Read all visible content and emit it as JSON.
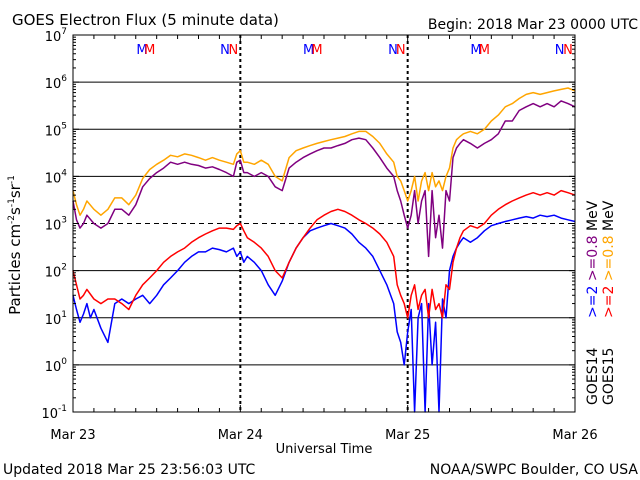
{
  "header": {
    "title": "GOES Electron Flux (5 minute data)",
    "begin": "Begin: 2018 Mar 23 0000 UTC"
  },
  "footer": {
    "updated": "Updated 2018 Mar 25 23:56:03 UTC",
    "credit": "NOAA/SWPC Boulder, CO USA"
  },
  "chart_data": {
    "type": "line",
    "title": "GOES Electron Flux (5 minute data)",
    "xlabel": "Universal Time",
    "ylabel": "Particles cm-2s-1sr-1",
    "y_scale": "log",
    "ylim": [
      0.1,
      10000000
    ],
    "xlim": [
      0,
      72
    ],
    "x_unit": "hours since 2018 Mar 23 0000 UTC",
    "x_ticks": [
      {
        "x": 0,
        "label": "Mar 23"
      },
      {
        "x": 24,
        "label": "Mar 24"
      },
      {
        "x": 48,
        "label": "Mar 25"
      },
      {
        "x": 72,
        "label": "Mar 26"
      }
    ],
    "y_ticks": [
      {
        "exp": -1,
        "base": "10",
        "sup": "-1"
      },
      {
        "exp": 0,
        "base": "10",
        "sup": "0"
      },
      {
        "exp": 1,
        "base": "10",
        "sup": "1"
      },
      {
        "exp": 2,
        "base": "10",
        "sup": "2"
      },
      {
        "exp": 3,
        "base": "10",
        "sup": "3"
      },
      {
        "exp": 4,
        "base": "10",
        "sup": "4"
      },
      {
        "exp": 5,
        "base": "10",
        "sup": "5"
      },
      {
        "exp": 6,
        "base": "10",
        "sup": "6"
      },
      {
        "exp": 7,
        "base": "10",
        "sup": "7"
      }
    ],
    "grid": "horizontal lines at each decade",
    "threshold_line": {
      "y": 1000,
      "style": "dashed"
    },
    "markers": [
      {
        "x": 9.9,
        "label": "M",
        "color": "#0000ff"
      },
      {
        "x": 11.0,
        "label": "M",
        "color": "#ff0000"
      },
      {
        "x": 21.8,
        "label": "N",
        "color": "#0000ff"
      },
      {
        "x": 23.0,
        "label": "N",
        "color": "#ff0000"
      },
      {
        "x": 33.8,
        "label": "M",
        "color": "#0000ff"
      },
      {
        "x": 35.0,
        "label": "M",
        "color": "#ff0000"
      },
      {
        "x": 45.9,
        "label": "N",
        "color": "#0000ff"
      },
      {
        "x": 47.0,
        "label": "N",
        "color": "#ff0000"
      },
      {
        "x": 57.8,
        "label": "M",
        "color": "#0000ff"
      },
      {
        "x": 59.0,
        "label": "M",
        "color": "#ff0000"
      },
      {
        "x": 69.8,
        "label": "N",
        "color": "#0000ff"
      },
      {
        "x": 71.0,
        "label": "N",
        "color": "#ff0000"
      }
    ],
    "legend": {
      "placement": "right, rotated",
      "groups": [
        {
          "items": [
            {
              "text": ">=2",
              "color": "#0000ff"
            },
            {
              "text": ">=0.8",
              "color": "#800080"
            },
            {
              "text": "MeV",
              "color": "#000000"
            }
          ]
        },
        {
          "items": [
            {
              "text": ">=2",
              "color": "#ff0000"
            },
            {
              "text": ">=0.8",
              "color": "#ffa500"
            },
            {
              "text": "MeV",
              "color": "#000000"
            }
          ]
        },
        {
          "items": [
            {
              "text": "GOES14",
              "color": "#000000"
            }
          ]
        },
        {
          "items": [
            {
              "text": "GOES15",
              "color": "#000000"
            }
          ]
        }
      ]
    },
    "series": [
      {
        "name": "GOES14 >=0.8 MeV",
        "color": "#800080",
        "x": [
          0,
          0.5,
          1,
          1.5,
          2,
          3,
          4,
          5,
          6,
          7,
          8,
          9,
          10,
          11,
          12,
          13,
          14,
          15,
          16,
          17,
          18,
          19,
          20,
          21,
          22,
          23,
          23.5,
          24,
          24.5,
          25,
          26,
          27,
          28,
          29,
          30,
          31,
          32,
          33,
          34,
          35,
          36,
          37,
          38,
          39,
          40,
          41,
          42,
          43,
          44,
          45,
          46,
          46.5,
          47,
          47.5,
          48,
          48.5,
          49,
          49.5,
          50,
          50.5,
          51,
          51.5,
          52,
          52.5,
          53,
          53.5,
          54,
          54.5,
          55,
          55.5,
          56,
          57,
          58,
          59,
          60,
          61,
          62,
          63,
          64,
          65,
          66,
          67,
          68,
          69,
          70,
          71,
          72
        ],
        "y": [
          3000,
          1200,
          800,
          1000,
          1500,
          1000,
          800,
          1000,
          2000,
          2000,
          1500,
          2500,
          6000,
          9000,
          12000,
          15000,
          20000,
          18000,
          20000,
          18000,
          17000,
          15000,
          16000,
          14000,
          12000,
          10000,
          20000,
          22000,
          12000,
          12000,
          10000,
          12000,
          10000,
          6000,
          5000,
          15000,
          20000,
          25000,
          30000,
          35000,
          40000,
          40000,
          45000,
          50000,
          60000,
          65000,
          60000,
          40000,
          25000,
          15000,
          10000,
          5000,
          3000,
          1500,
          800,
          1500,
          5000,
          1000,
          3000,
          5000,
          200,
          5000,
          500,
          1500,
          300,
          5000,
          3000,
          25000,
          40000,
          50000,
          60000,
          50000,
          40000,
          50000,
          60000,
          80000,
          150000,
          150000,
          250000,
          300000,
          350000,
          300000,
          350000,
          300000,
          400000,
          350000,
          300000
        ]
      },
      {
        "name": "GOES15 >=0.8 MeV",
        "color": "#ffa500",
        "x": [
          0,
          0.5,
          1,
          1.5,
          2,
          3,
          4,
          5,
          6,
          7,
          8,
          9,
          10,
          11,
          12,
          13,
          14,
          15,
          16,
          17,
          18,
          19,
          20,
          21,
          22,
          23,
          23.5,
          24,
          24.5,
          25,
          26,
          27,
          28,
          29,
          30,
          31,
          32,
          33,
          34,
          35,
          36,
          37,
          38,
          39,
          40,
          41,
          42,
          43,
          44,
          45,
          46,
          46.5,
          47,
          47.5,
          48,
          48.5,
          49,
          49.5,
          50,
          50.5,
          51,
          51.5,
          52,
          52.5,
          53,
          53.5,
          54,
          54.5,
          55,
          55.5,
          56,
          57,
          58,
          59,
          60,
          61,
          62,
          63,
          64,
          65,
          66,
          67,
          68,
          69,
          70,
          71,
          72
        ],
        "y": [
          5000,
          2500,
          1500,
          2000,
          3000,
          2000,
          1500,
          2000,
          3500,
          3500,
          2500,
          4000,
          9000,
          14000,
          18000,
          22000,
          28000,
          26000,
          30000,
          28000,
          25000,
          22000,
          25000,
          22000,
          20000,
          18000,
          30000,
          35000,
          20000,
          20000,
          18000,
          22000,
          18000,
          10000,
          8000,
          25000,
          35000,
          40000,
          45000,
          50000,
          55000,
          60000,
          65000,
          70000,
          80000,
          90000,
          90000,
          70000,
          50000,
          30000,
          20000,
          10000,
          8000,
          5000,
          3000,
          5000,
          10000,
          3000,
          8000,
          12000,
          5000,
          12000,
          6000,
          8000,
          5000,
          10000,
          15000,
          40000,
          60000,
          70000,
          80000,
          90000,
          80000,
          100000,
          150000,
          200000,
          300000,
          350000,
          450000,
          550000,
          600000,
          550000,
          600000,
          650000,
          700000,
          750000,
          650000
        ]
      },
      {
        "name": "GOES14 >=2 MeV",
        "color": "#0000ff",
        "x": [
          0,
          0.5,
          1,
          1.5,
          2,
          2.5,
          3,
          4,
          5,
          6,
          7,
          8,
          9,
          10,
          11,
          12,
          13,
          14,
          15,
          16,
          17,
          18,
          19,
          20,
          21,
          22,
          23,
          23.5,
          24,
          24.5,
          25,
          26,
          27,
          28,
          29,
          30,
          31,
          32,
          33,
          34,
          35,
          36,
          37,
          38,
          39,
          40,
          41,
          42,
          43,
          44,
          45,
          46,
          46.5,
          47,
          47.5,
          48,
          48.5,
          49,
          49.5,
          50,
          50.5,
          51,
          51.5,
          52,
          52.5,
          53,
          53.5,
          54,
          54.5,
          55,
          55.5,
          56,
          57,
          58,
          59,
          60,
          61,
          62,
          63,
          64,
          65,
          66,
          67,
          68,
          69,
          70,
          71,
          72
        ],
        "y": [
          30,
          15,
          8,
          12,
          20,
          10,
          15,
          6,
          3,
          20,
          25,
          20,
          25,
          30,
          20,
          30,
          50,
          70,
          100,
          150,
          200,
          250,
          250,
          300,
          280,
          250,
          300,
          200,
          250,
          150,
          200,
          150,
          100,
          50,
          30,
          60,
          150,
          300,
          500,
          700,
          800,
          900,
          1000,
          900,
          800,
          600,
          400,
          300,
          200,
          100,
          50,
          20,
          5,
          3,
          1,
          5,
          15,
          0.1,
          10,
          20,
          0.1,
          20,
          1,
          8,
          0.1,
          25,
          10,
          100,
          200,
          300,
          400,
          500,
          400,
          500,
          700,
          900,
          1000,
          1100,
          1200,
          1300,
          1400,
          1300,
          1500,
          1400,
          1500,
          1300,
          1200,
          1100
        ]
      },
      {
        "name": "GOES15 >=2 MeV",
        "color": "#ff0000",
        "x": [
          0,
          0.5,
          1,
          1.5,
          2,
          3,
          4,
          5,
          6,
          7,
          8,
          9,
          10,
          11,
          12,
          13,
          14,
          15,
          16,
          17,
          18,
          19,
          20,
          21,
          22,
          23,
          23.5,
          24,
          24.5,
          25,
          26,
          27,
          28,
          29,
          30,
          31,
          32,
          33,
          34,
          35,
          36,
          37,
          38,
          39,
          40,
          41,
          42,
          43,
          44,
          45,
          46,
          46.5,
          47,
          47.5,
          48,
          48.5,
          49,
          49.5,
          50,
          50.5,
          51,
          51.5,
          52,
          52.5,
          53,
          53.5,
          54,
          54.5,
          55,
          55.5,
          56,
          57,
          58,
          59,
          60,
          61,
          62,
          63,
          64,
          65,
          66,
          67,
          68,
          69,
          70,
          71,
          72
        ],
        "y": [
          100,
          50,
          25,
          30,
          40,
          25,
          20,
          25,
          25,
          20,
          15,
          30,
          50,
          70,
          100,
          150,
          200,
          250,
          300,
          400,
          500,
          600,
          700,
          800,
          800,
          750,
          900,
          1000,
          700,
          500,
          400,
          300,
          200,
          100,
          70,
          150,
          300,
          500,
          800,
          1200,
          1500,
          1800,
          2000,
          1800,
          1500,
          1200,
          1000,
          800,
          600,
          400,
          200,
          50,
          30,
          20,
          10,
          30,
          50,
          15,
          30,
          40,
          10,
          40,
          15,
          20,
          10,
          50,
          40,
          150,
          300,
          500,
          700,
          900,
          800,
          1000,
          1500,
          2000,
          2500,
          3000,
          3500,
          4000,
          4500,
          4000,
          4500,
          4000,
          5000,
          4500,
          4000
        ]
      }
    ]
  }
}
